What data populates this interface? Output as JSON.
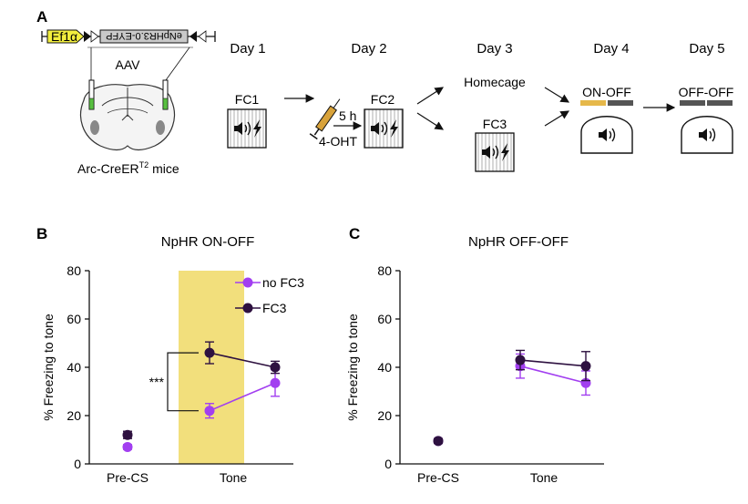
{
  "panel_a": {
    "letter": "A",
    "construct": {
      "promoter": "Ef1α",
      "gene": "eNpHR3.0-EYFP"
    },
    "virus": "AAV",
    "mouse_line": "Arc-CreER",
    "mouse_sup": "T2",
    "mouse_suffix": " mice",
    "days": [
      "Day 1",
      "Day 2",
      "Day 3",
      "Day 4",
      "Day 5"
    ],
    "sessions": {
      "fc1": "FC1",
      "fc2": "FC2",
      "homecage": "Homecage",
      "fc3": "FC3",
      "day4": "ON-OFF",
      "day5": "OFF-OFF"
    },
    "injection_delay": "5 h",
    "drug": "4-OHT",
    "colors": {
      "laser_on": "#e6b84a",
      "laser_off": "#555555",
      "syringe": "#d8a23a",
      "promoter": "#f2ee3e"
    },
    "icons": [
      "speaker-icon",
      "lightning-icon",
      "syringe-icon",
      "arrow-icon"
    ]
  },
  "chart_data": [
    {
      "panel": "B",
      "type": "line",
      "title": "NpHR ON-OFF",
      "ylabel": "% Freezing to tone",
      "xlabel": "",
      "categories": [
        "Pre-CS",
        "Tone"
      ],
      "ylim": [
        0,
        80
      ],
      "yticks": [
        0,
        20,
        40,
        60,
        80
      ],
      "shaded_region": {
        "from": "Tone",
        "to": "Tone",
        "color": "#f2df7c",
        "meaning": "laser on"
      },
      "legend_position": "top-right",
      "significance": "***",
      "series": [
        {
          "name": "no FC3",
          "color": "#a23ff0",
          "precs": {
            "value": 7,
            "err": 1
          },
          "tone": [
            {
              "value": 22,
              "err": 3
            },
            {
              "value": 33.5,
              "err": 5.5
            }
          ]
        },
        {
          "name": "FC3",
          "color": "#2e1140",
          "precs": {
            "value": 12,
            "err": 1.5
          },
          "tone": [
            {
              "value": 46,
              "err": 4.5
            },
            {
              "value": 40,
              "err": 2.5
            }
          ]
        }
      ]
    },
    {
      "panel": "C",
      "type": "line",
      "title": "NpHR OFF-OFF",
      "ylabel": "% Freezing to tone",
      "xlabel": "",
      "categories": [
        "Pre-CS",
        "Tone"
      ],
      "ylim": [
        0,
        80
      ],
      "yticks": [
        0,
        20,
        40,
        60,
        80
      ],
      "series": [
        {
          "name": "no FC3",
          "color": "#a23ff0",
          "precs": {
            "value": 9.5,
            "err": 1
          },
          "tone": [
            {
              "value": 40.5,
              "err": 5
            },
            {
              "value": 33.5,
              "err": 5
            }
          ]
        },
        {
          "name": "FC3",
          "color": "#2e1140",
          "precs": {
            "value": 9.5,
            "err": 1
          },
          "tone": [
            {
              "value": 43,
              "err": 4
            },
            {
              "value": 40.5,
              "err": 6
            }
          ]
        }
      ]
    }
  ]
}
